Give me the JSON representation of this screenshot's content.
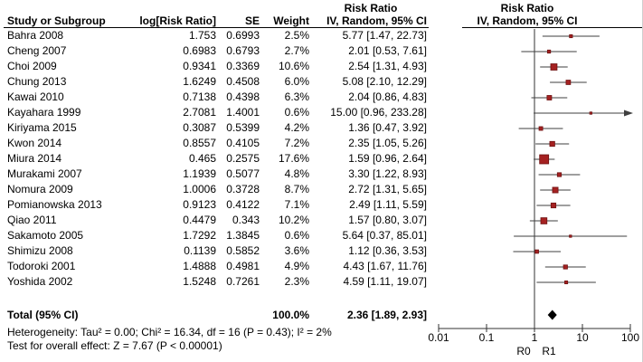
{
  "columns": {
    "study": "Study or Subgroup",
    "log_rr": "log[Risk Ratio]",
    "se": "SE",
    "weight": "Weight",
    "effect_line1": "Risk Ratio",
    "effect_line2": "IV, Random, 95% CI",
    "plot_line1": "Risk Ratio",
    "plot_line2": "IV, Random, 95% CI"
  },
  "chart_data": {
    "type": "forest",
    "x_scale": "log10",
    "x_ticks": [
      0.01,
      0.1,
      1,
      10,
      100
    ],
    "tick_labels": [
      "0.01",
      "0.1",
      "1",
      "10",
      "100"
    ],
    "axis_label_left": "R0",
    "axis_label_right": "R1",
    "studies": [
      {
        "name": "Bahra 2008",
        "log_rr": "1.753",
        "se": "0.6993",
        "weight": "2.5%",
        "w": 2.5,
        "ci_text": "5.77 [1.47, 22.73]",
        "rr": 5.77,
        "lo": 1.47,
        "hi": 22.73
      },
      {
        "name": "Cheng 2007",
        "log_rr": "0.6983",
        "se": "0.6793",
        "weight": "2.7%",
        "w": 2.7,
        "ci_text": "2.01 [0.53, 7.61]",
        "rr": 2.01,
        "lo": 0.53,
        "hi": 7.61
      },
      {
        "name": "Choi 2009",
        "log_rr": "0.9341",
        "se": "0.3369",
        "weight": "10.6%",
        "w": 10.6,
        "ci_text": "2.54 [1.31, 4.93]",
        "rr": 2.54,
        "lo": 1.31,
        "hi": 4.93
      },
      {
        "name": "Chung 2013",
        "log_rr": "1.6249",
        "se": "0.4508",
        "weight": "6.0%",
        "w": 6.0,
        "ci_text": "5.08 [2.10, 12.29]",
        "rr": 5.08,
        "lo": 2.1,
        "hi": 12.29
      },
      {
        "name": "Kawai 2010",
        "log_rr": "0.7138",
        "se": "0.4398",
        "weight": "6.3%",
        "w": 6.3,
        "ci_text": "2.04 [0.86, 4.83]",
        "rr": 2.04,
        "lo": 0.86,
        "hi": 4.83
      },
      {
        "name": "Kayahara 1999",
        "log_rr": "2.7081",
        "se": "1.4001",
        "weight": "0.6%",
        "w": 0.6,
        "ci_text": "15.00 [0.96, 233.28]",
        "rr": 15.0,
        "lo": 0.96,
        "hi": 233.28
      },
      {
        "name": "Kiriyama 2015",
        "log_rr": "0.3087",
        "se": "0.5399",
        "weight": "4.2%",
        "w": 4.2,
        "ci_text": "1.36 [0.47, 3.92]",
        "rr": 1.36,
        "lo": 0.47,
        "hi": 3.92
      },
      {
        "name": "Kwon 2014",
        "log_rr": "0.8557",
        "se": "0.4105",
        "weight": "7.2%",
        "w": 7.2,
        "ci_text": "2.35 [1.05, 5.26]",
        "rr": 2.35,
        "lo": 1.05,
        "hi": 5.26
      },
      {
        "name": "Miura 2014",
        "log_rr": "0.465",
        "se": "0.2575",
        "weight": "17.6%",
        "w": 17.6,
        "ci_text": "1.59 [0.96, 2.64]",
        "rr": 1.59,
        "lo": 0.96,
        "hi": 2.64
      },
      {
        "name": "Murakami 2007",
        "log_rr": "1.1939",
        "se": "0.5077",
        "weight": "4.8%",
        "w": 4.8,
        "ci_text": "3.30 [1.22, 8.93]",
        "rr": 3.3,
        "lo": 1.22,
        "hi": 8.93
      },
      {
        "name": "Nomura 2009",
        "log_rr": "1.0006",
        "se": "0.3728",
        "weight": "8.7%",
        "w": 8.7,
        "ci_text": "2.72 [1.31, 5.65]",
        "rr": 2.72,
        "lo": 1.31,
        "hi": 5.65
      },
      {
        "name": "Pomianowska 2013",
        "log_rr": "0.9123",
        "se": "0.4122",
        "weight": "7.1%",
        "w": 7.1,
        "ci_text": "2.49 [1.11, 5.59]",
        "rr": 2.49,
        "lo": 1.11,
        "hi": 5.59
      },
      {
        "name": "Qiao 2011",
        "log_rr": "0.4479",
        "se": "0.343",
        "weight": "10.2%",
        "w": 10.2,
        "ci_text": "1.57 [0.80, 3.07]",
        "rr": 1.57,
        "lo": 0.8,
        "hi": 3.07
      },
      {
        "name": "Sakamoto 2005",
        "log_rr": "1.7292",
        "se": "1.3845",
        "weight": "0.6%",
        "w": 0.6,
        "ci_text": "5.64 [0.37, 85.01]",
        "rr": 5.64,
        "lo": 0.37,
        "hi": 85.01
      },
      {
        "name": "Shimizu 2008",
        "log_rr": "0.1139",
        "se": "0.5852",
        "weight": "3.6%",
        "w": 3.6,
        "ci_text": "1.12 [0.36, 3.53]",
        "rr": 1.12,
        "lo": 0.36,
        "hi": 3.53
      },
      {
        "name": "Todoroki 2001",
        "log_rr": "1.4888",
        "se": "0.4981",
        "weight": "4.9%",
        "w": 4.9,
        "ci_text": "4.43 [1.67, 11.76]",
        "rr": 4.43,
        "lo": 1.67,
        "hi": 11.76
      },
      {
        "name": "Yoshida 2002",
        "log_rr": "1.5248",
        "se": "0.7261",
        "weight": "2.3%",
        "w": 2.3,
        "ci_text": "4.59 [1.11, 19.07]",
        "rr": 4.59,
        "lo": 1.11,
        "hi": 19.07
      }
    ],
    "total": {
      "label": "Total (95% CI)",
      "weight": "100.0%",
      "ci_text": "2.36 [1.89, 2.93]",
      "rr": 2.36,
      "lo": 1.89,
      "hi": 2.93
    },
    "heterogeneity": "Heterogeneity: Tau² = 0.00; Chi² = 16.34, df = 16 (P = 0.43); I² = 2%",
    "overall_effect": "Test for overall effect: Z = 7.67 (P < 0.00001)"
  },
  "colors": {
    "marker": "#a52121",
    "marker_border": "#6e1111",
    "ci_line": "#3f3f3f",
    "axis": "#333333",
    "diamond": "#000000"
  }
}
